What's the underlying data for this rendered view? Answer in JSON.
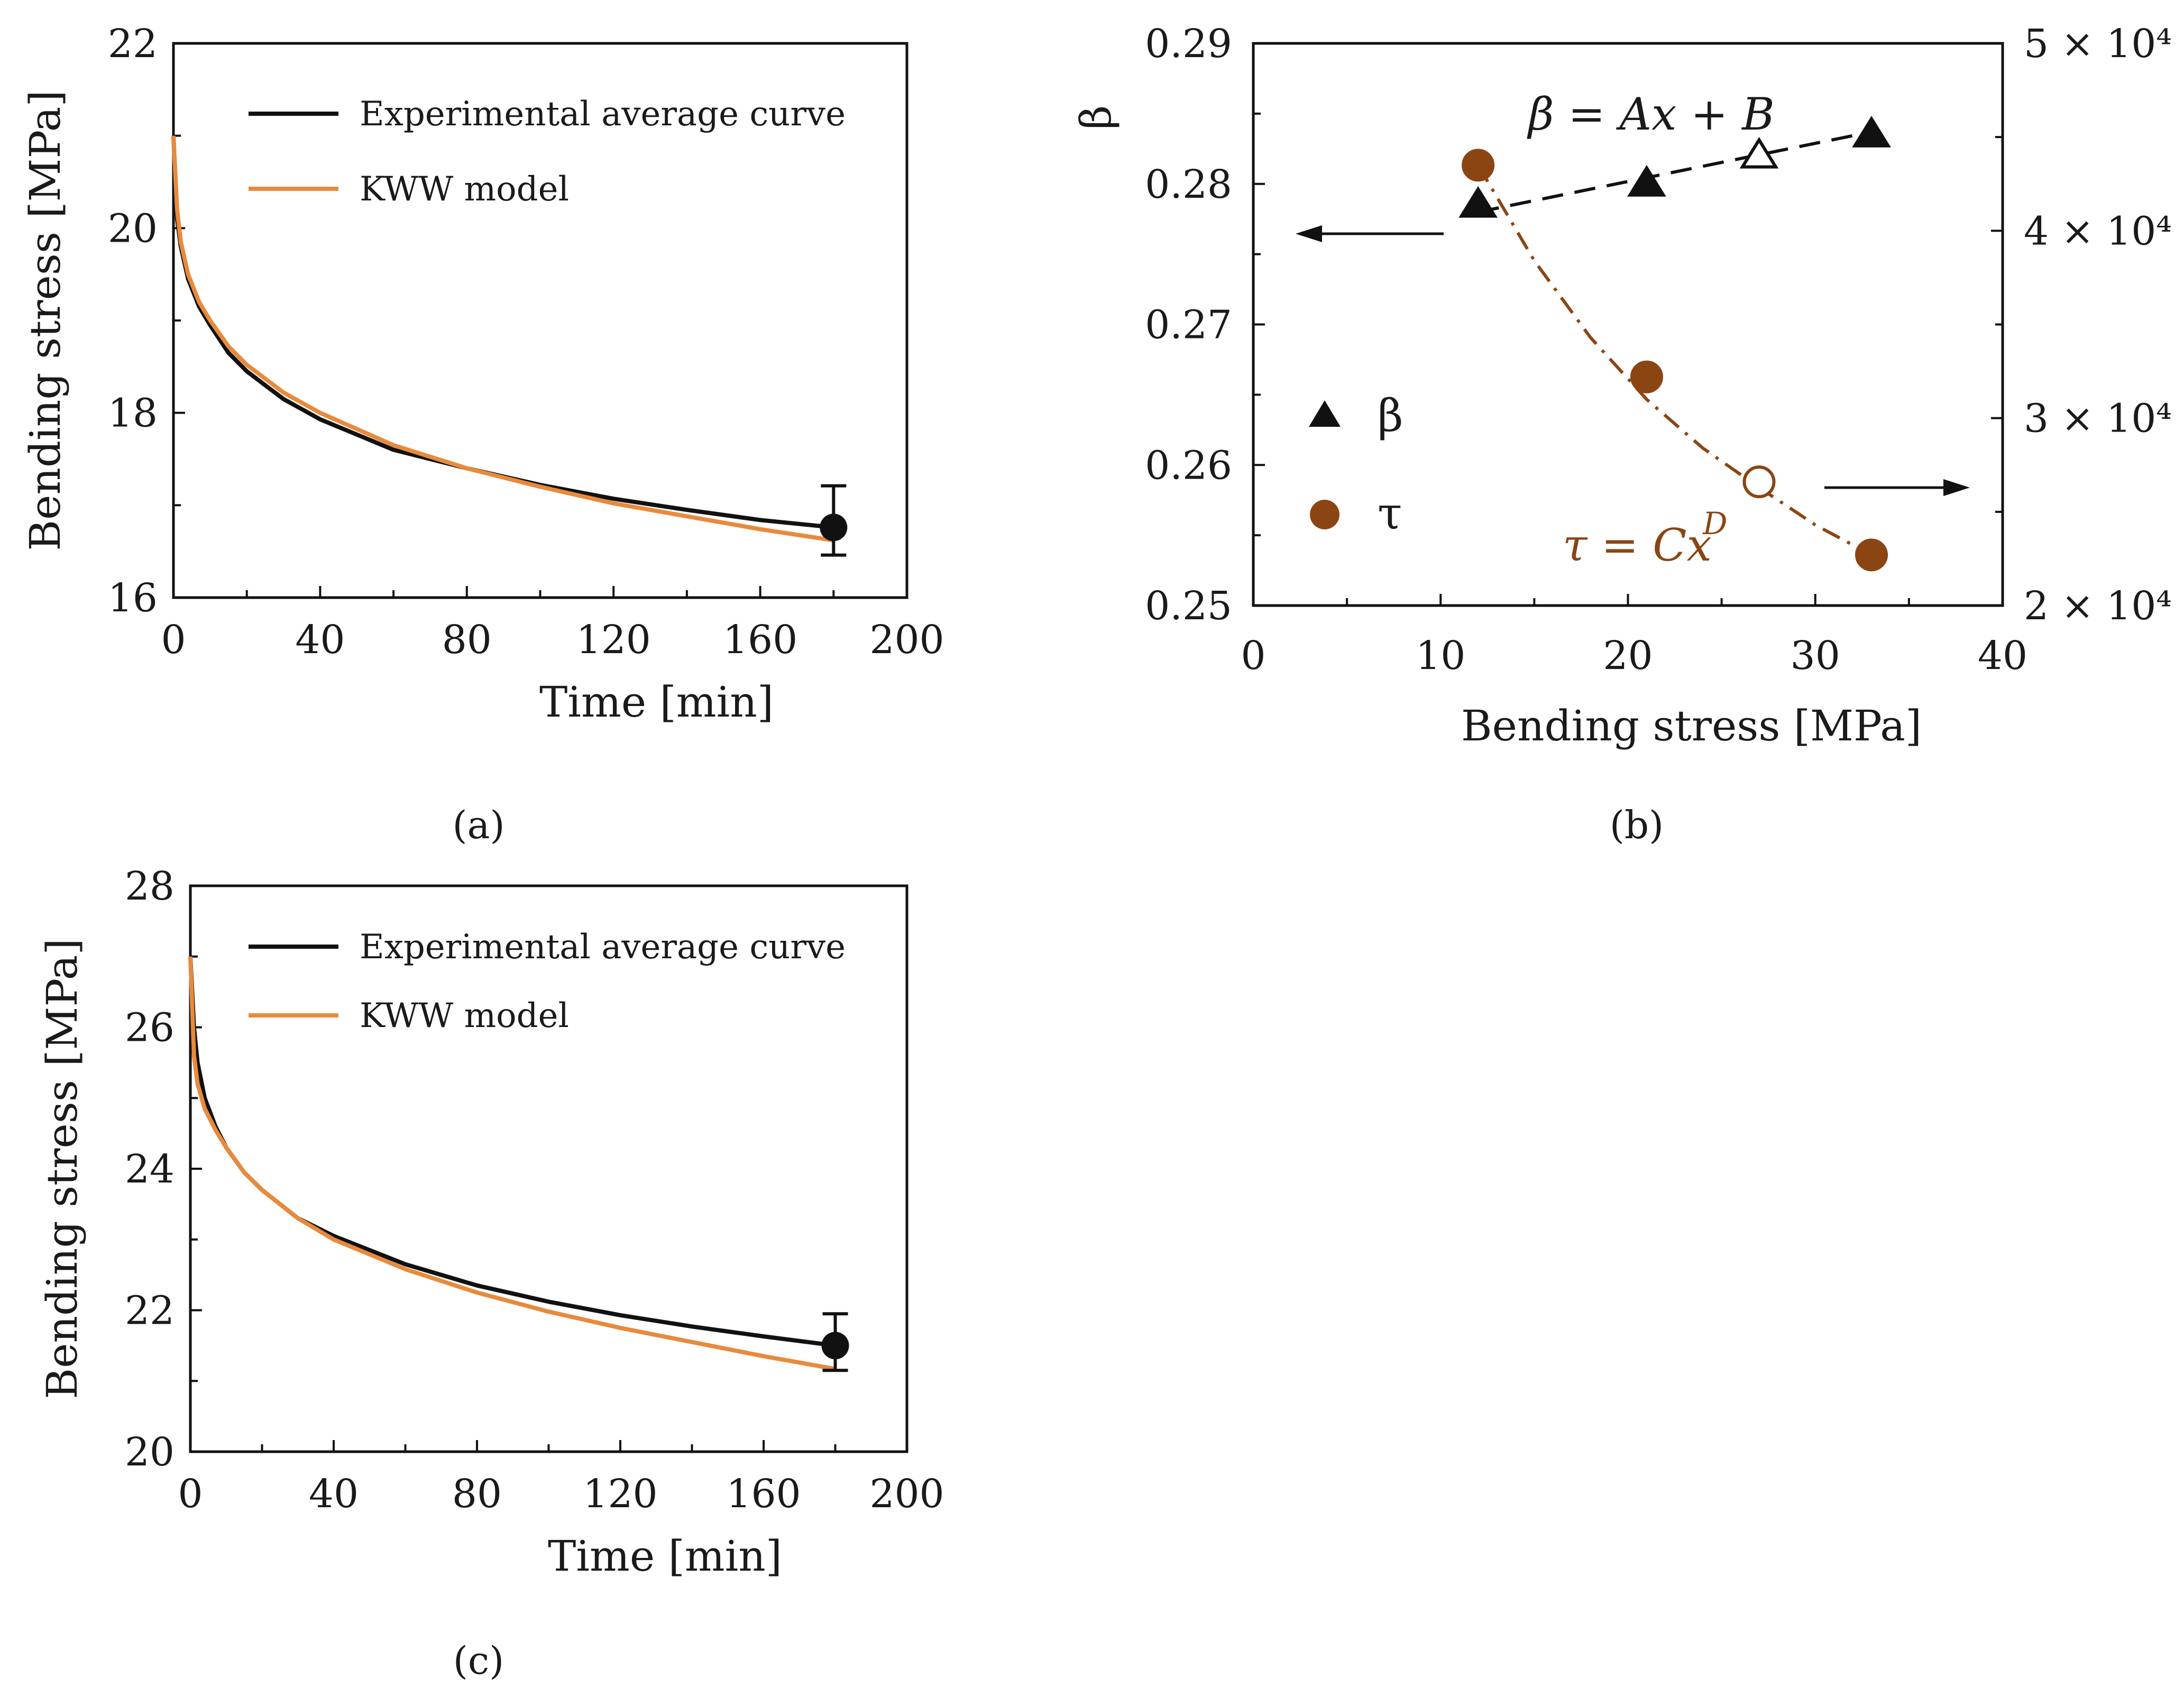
{
  "chart_data": [
    {
      "panel": "a",
      "panel_label": "(a)",
      "type": "line",
      "xlabel": "Time [min]",
      "ylabel": "Bending stress [MPa]",
      "xlim": [
        0,
        200
      ],
      "ylim": [
        16,
        22
      ],
      "xticks": [
        0,
        40,
        80,
        120,
        160,
        200
      ],
      "yticks": [
        16,
        18,
        20,
        22
      ],
      "legend": "top-right",
      "series": [
        {
          "name": "Experimental average curve",
          "color": "#111111",
          "x": [
            0,
            1,
            2,
            4,
            7,
            10,
            15,
            20,
            30,
            40,
            60,
            80,
            100,
            120,
            140,
            160,
            180
          ],
          "y": [
            21.0,
            20.1,
            19.8,
            19.45,
            19.15,
            18.95,
            18.65,
            18.45,
            18.15,
            17.93,
            17.6,
            17.4,
            17.22,
            17.07,
            16.95,
            16.84,
            16.76
          ]
        },
        {
          "name": "KWW model",
          "color": "#e88a3c",
          "x": [
            0,
            1,
            2,
            4,
            7,
            10,
            15,
            20,
            30,
            40,
            60,
            80,
            100,
            120,
            140,
            160,
            180
          ],
          "y": [
            21.0,
            20.2,
            19.85,
            19.5,
            19.2,
            19.0,
            18.72,
            18.52,
            18.22,
            18.0,
            17.65,
            17.4,
            17.2,
            17.02,
            16.88,
            16.74,
            16.62
          ]
        }
      ],
      "error_point": {
        "x": 180,
        "y": 16.76,
        "err_low": 0.3,
        "err_high": 0.45
      }
    },
    {
      "panel": "b",
      "panel_label": "(b)",
      "type": "scatter",
      "xlabel": "Bending stress [MPa]",
      "ylabel": "β",
      "xlim": [
        0,
        40
      ],
      "ylim": [
        0.25,
        0.29
      ],
      "y2lim": [
        20000,
        50000
      ],
      "xticks": [
        0,
        10,
        20,
        30,
        40
      ],
      "yticks": [
        0.25,
        0.26,
        0.27,
        0.28,
        0.29
      ],
      "y2ticks": [
        20000,
        30000,
        40000,
        50000
      ],
      "y2tick_labels": [
        "2 × 10⁴",
        "3 × 10⁴",
        "4 × 10⁴",
        "5 × 10⁴"
      ],
      "legend": "left",
      "series": [
        {
          "name": "β",
          "marker": "triangle",
          "color": "#111111",
          "axis": "left",
          "x": [
            12,
            21,
            27,
            33
          ],
          "y": [
            0.2785,
            0.28,
            0.282,
            0.2835
          ],
          "hollow": [
            false,
            false,
            true,
            false
          ]
        },
        {
          "name": "τ",
          "marker": "circle",
          "color": "#8b4513",
          "axis": "right",
          "x": [
            12,
            21,
            27,
            33
          ],
          "y": [
            43500,
            32200,
            26600,
            22700
          ],
          "hollow": [
            false,
            false,
            true,
            false
          ]
        }
      ],
      "fits": [
        {
          "label": "β = Ax + B",
          "color": "#111111",
          "axis": "left",
          "x": [
            12,
            33
          ],
          "y": [
            0.278,
            0.2837
          ]
        },
        {
          "label": "τ = Cx^D",
          "color": "#8b4513",
          "axis": "right",
          "x": [
            12,
            15,
            18,
            21,
            24,
            27,
            30,
            33
          ],
          "y": [
            43500,
            38400,
            34300,
            31000,
            28400,
            26300,
            24300,
            22700
          ]
        }
      ],
      "annotations": [
        {
          "eq_main": "β = Ax + B"
        },
        {
          "eq_main": "τ = Cx",
          "eq_sup": "D"
        }
      ]
    },
    {
      "panel": "c",
      "panel_label": "(c)",
      "type": "line",
      "xlabel": "Time [min]",
      "ylabel": "Bending stress [MPa]",
      "xlim": [
        0,
        200
      ],
      "ylim": [
        20,
        28
      ],
      "xticks": [
        0,
        40,
        80,
        120,
        160,
        200
      ],
      "yticks": [
        20,
        22,
        24,
        26,
        28
      ],
      "legend": "top-right",
      "series": [
        {
          "name": "Experimental average curve",
          "color": "#111111",
          "x": [
            0,
            1,
            2,
            4,
            7,
            10,
            15,
            20,
            30,
            40,
            60,
            80,
            100,
            120,
            140,
            160,
            180
          ],
          "y": [
            27.0,
            26.0,
            25.5,
            25.0,
            24.6,
            24.3,
            23.95,
            23.7,
            23.3,
            23.05,
            22.65,
            22.35,
            22.12,
            21.93,
            21.77,
            21.63,
            21.5
          ]
        },
        {
          "name": "KWW model",
          "color": "#e88a3c",
          "x": [
            0,
            1,
            2,
            4,
            7,
            10,
            15,
            20,
            30,
            40,
            60,
            80,
            100,
            120,
            140,
            160,
            180
          ],
          "y": [
            27.0,
            25.6,
            25.2,
            24.85,
            24.55,
            24.3,
            23.95,
            23.7,
            23.3,
            23.0,
            22.58,
            22.25,
            21.98,
            21.75,
            21.55,
            21.35,
            21.17
          ]
        }
      ],
      "error_point": {
        "x": 180,
        "y": 21.5,
        "err_low": 0.35,
        "err_high": 0.45
      }
    }
  ]
}
